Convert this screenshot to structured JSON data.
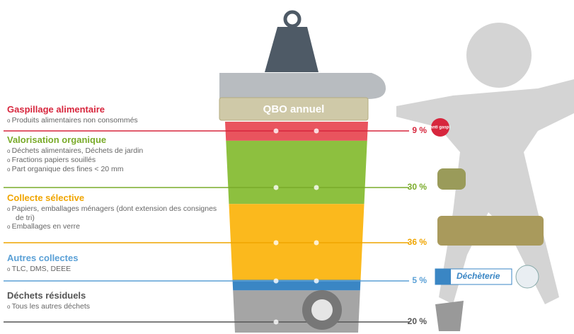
{
  "bin_label": "QBO annuel",
  "segments": [
    {
      "title": "Gaspillage alimentaire",
      "items": [
        "Produits alimentaires non consommés"
      ],
      "value": 9,
      "label": "9 %",
      "color": "#d7263d",
      "fill": "#e9545e"
    },
    {
      "title": "Valorisation organique",
      "items": [
        "Déchets alimentaires, Déchets de jardin",
        "Fractions papiers souillés",
        "Part organique des fines < 20 mm"
      ],
      "value": 30,
      "label": "30 %",
      "color": "#7aab2a",
      "fill": "#8dc03f"
    },
    {
      "title": "Collecte sélective",
      "items": [
        "Papiers, emballages ménagers (dont extension des consignes de tri)",
        "Emballages en verre"
      ],
      "value": 36,
      "label": "36 %",
      "color": "#f0a500",
      "fill": "#fbb91d"
    },
    {
      "title": "Autres collectes",
      "items": [
        "TLC, DMS, DEEE"
      ],
      "value": 5,
      "label": "5 %",
      "color": "#5aa0d6",
      "fill": "#3a86c4"
    },
    {
      "title": "Déchets résiduels",
      "items": [
        "Tous les autres déchets"
      ],
      "value": 20,
      "label": "20 %",
      "color": "#555555",
      "fill": "#a5a5a5"
    }
  ],
  "icons": {
    "anti_gaspi": "anti gaspi",
    "decheterie": "Déchèterie"
  }
}
